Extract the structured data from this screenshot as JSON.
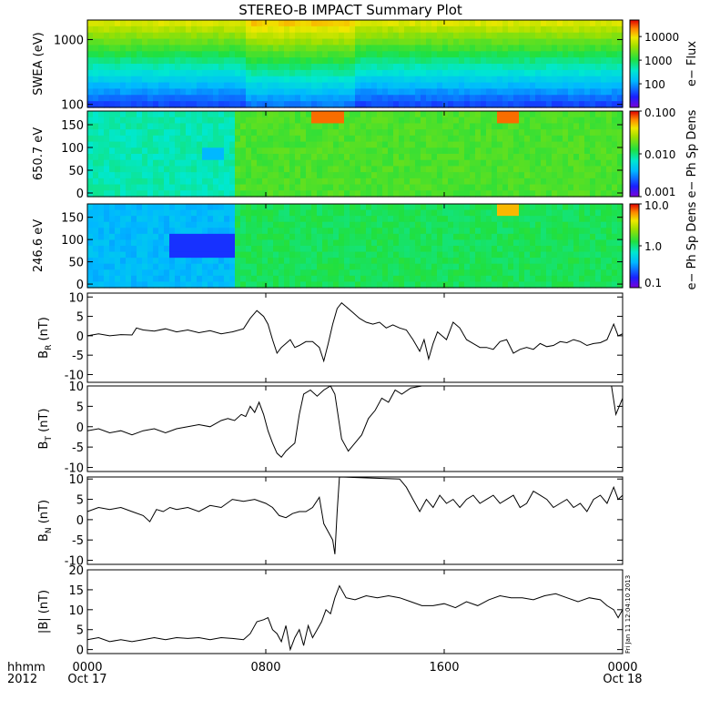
{
  "chart_data": {
    "title": "STEREO-B IMPACT Summary Plot",
    "x_axis": {
      "ticks": [
        {
          "hour": 0,
          "time": "0000",
          "date": "Oct 17"
        },
        {
          "hour": 8,
          "time": "0800",
          "date": ""
        },
        {
          "hour": 16,
          "time": "1600",
          "date": ""
        },
        {
          "hour": 24,
          "time": "0000",
          "date": "Oct 18"
        }
      ],
      "row_label_time": "hhmm",
      "row_label_year": "2012",
      "range": [
        0,
        24
      ]
    },
    "stamp": "Fri Jan 11 12:04:10 2013",
    "spectrograms": [
      {
        "name": "swea",
        "ylabel": "SWEA (eV)",
        "yscale": "log",
        "ylim": [
          90,
          2000
        ],
        "yticks": [
          {
            "value": 100,
            "label": "100"
          },
          {
            "value": 1000,
            "label": "1000"
          }
        ],
        "cbar_label": "e− Flux",
        "cbar_scale": "log",
        "cbar_range": [
          10,
          50000
        ],
        "cbar_ticks": [
          {
            "value": 100,
            "label": "100"
          },
          {
            "value": 1000,
            "label": "1000"
          },
          {
            "value": 10000,
            "label": "10000"
          }
        ]
      },
      {
        "name": "pad650",
        "ylabel": "650.7 eV",
        "yscale": "linear",
        "ylim": [
          -8,
          180
        ],
        "yticks": [
          {
            "value": 0,
            "label": "0"
          },
          {
            "value": 50,
            "label": "50"
          },
          {
            "value": 100,
            "label": "100"
          },
          {
            "value": 150,
            "label": "150"
          }
        ],
        "cbar_label": "e− Ph Sp Dens",
        "cbar_scale": "log",
        "cbar_range": [
          0.001,
          0.1
        ],
        "cbar_ticks": [
          {
            "value": 0.001,
            "label": "0.001"
          },
          {
            "value": 0.01,
            "label": "0.010"
          },
          {
            "value": 0.1,
            "label": "0.100"
          }
        ]
      },
      {
        "name": "pad246",
        "ylabel": "246.6 eV",
        "yscale": "linear",
        "ylim": [
          -8,
          180
        ],
        "yticks": [
          {
            "value": 0,
            "label": "0"
          },
          {
            "value": 50,
            "label": "50"
          },
          {
            "value": 100,
            "label": "100"
          },
          {
            "value": 150,
            "label": "150"
          }
        ],
        "cbar_label": "e− Ph Sp Dens",
        "cbar_scale": "log",
        "cbar_range": [
          0.1,
          10
        ],
        "cbar_ticks": [
          {
            "value": 0.1,
            "label": "0.1"
          },
          {
            "value": 1,
            "label": "1.0"
          },
          {
            "value": 10,
            "label": "10.0"
          }
        ]
      }
    ],
    "line_panels": [
      {
        "name": "br",
        "ylabel_main": "B",
        "ylabel_sub": "R",
        "ylabel_unit": "(nT)",
        "ylim": [
          -12,
          11
        ],
        "yticks": [
          -10,
          -5,
          0,
          5,
          10
        ],
        "x": [
          0,
          0.5,
          1,
          1.5,
          2,
          2.2,
          2.5,
          3,
          3.5,
          4,
          4.5,
          5,
          5.5,
          6,
          6.5,
          7,
          7.3,
          7.6,
          7.9,
          8.1,
          8.3,
          8.5,
          8.7,
          8.9,
          9.1,
          9.3,
          9.5,
          9.8,
          10.1,
          10.4,
          10.6,
          10.8,
          11.0,
          11.2,
          11.4,
          11.6,
          11.9,
          12.2,
          12.5,
          12.8,
          13.1,
          13.4,
          13.7,
          14,
          14.3,
          14.6,
          14.9,
          15.1,
          15.3,
          15.5,
          15.7,
          15.9,
          16.1,
          16.4,
          16.7,
          17,
          17.3,
          17.6,
          17.9,
          18.2,
          18.5,
          18.8,
          19.1,
          19.4,
          19.7,
          20,
          20.3,
          20.6,
          20.9,
          21.2,
          21.5,
          21.8,
          22.1,
          22.4,
          22.7,
          23,
          23.3,
          23.6,
          23.8,
          24
        ],
        "y": [
          0,
          0.5,
          0,
          0.3,
          0.2,
          2,
          1.5,
          1.2,
          1.8,
          1,
          1.5,
          0.8,
          1.3,
          0.5,
          1,
          1.8,
          4.5,
          6.5,
          5,
          3,
          -1,
          -4.5,
          -3,
          -2,
          -1,
          -3,
          -2.5,
          -1.5,
          -1.5,
          -3,
          -6.5,
          -2,
          3,
          7,
          8.5,
          7.5,
          6,
          4.5,
          3.5,
          3,
          3.5,
          2,
          2.8,
          2,
          1.5,
          -1,
          -4,
          -1,
          -6,
          -2,
          1,
          0,
          -1,
          3.5,
          2,
          -1,
          -2,
          -3,
          -3,
          -3.5,
          -1.5,
          -1,
          -4.5,
          -3.5,
          -3,
          -3.5,
          -2,
          -2.8,
          -2.5,
          -1.5,
          -1.8,
          -1,
          -1.5,
          -2.5,
          -2,
          -1.8,
          -1,
          3,
          0,
          0.5
        ]
      },
      {
        "name": "bt",
        "ylabel_main": "B",
        "ylabel_sub": "T",
        "ylabel_unit": "(nT)",
        "ylim": [
          -11,
          10
        ],
        "yticks": [
          -10,
          -5,
          0,
          5,
          10
        ],
        "x": [
          0,
          0.5,
          1,
          1.5,
          2,
          2.5,
          3,
          3.5,
          4,
          4.5,
          5,
          5.5,
          6,
          6.3,
          6.6,
          6.9,
          7.1,
          7.3,
          7.5,
          7.7,
          7.9,
          8.1,
          8.3,
          8.5,
          8.7,
          8.9,
          9.1,
          9.3,
          9.5,
          9.7,
          10.0,
          10.3,
          10.6,
          10.9,
          11.1,
          11.4,
          11.7,
          12,
          12.3,
          12.6,
          12.9,
          13.2,
          13.5,
          13.8,
          14.1,
          14.5,
          15,
          15.5,
          16,
          16.5,
          17,
          17.5,
          18,
          19,
          20,
          21,
          22,
          23,
          23.5,
          23.7,
          24
        ],
        "y": [
          -1,
          -0.5,
          -1.5,
          -1,
          -2,
          -1,
          -0.5,
          -1.5,
          -0.5,
          0,
          0.5,
          0,
          1.5,
          2,
          1.5,
          3,
          2.5,
          5,
          3.5,
          6,
          3,
          -1,
          -4,
          -6.5,
          -7.5,
          -6,
          -5,
          -4,
          3,
          8,
          9,
          7.5,
          9,
          10,
          8,
          -3,
          -6,
          -4,
          -2,
          2,
          4,
          7,
          6,
          9,
          8,
          9.5,
          10,
          10,
          10,
          10,
          10,
          10,
          10,
          10,
          10,
          10,
          10,
          10,
          10,
          3,
          7
        ]
      },
      {
        "name": "bn",
        "ylabel_main": "B",
        "ylabel_sub": "N",
        "ylabel_unit": "(nT)",
        "ylim": [
          -11,
          10.5
        ],
        "yticks": [
          -10,
          -5,
          0,
          5,
          10
        ],
        "x": [
          0,
          0.5,
          1,
          1.5,
          2,
          2.5,
          2.8,
          3.1,
          3.4,
          3.7,
          4,
          4.5,
          5,
          5.5,
          6,
          6.5,
          7,
          7.5,
          8,
          8.3,
          8.6,
          8.9,
          9.2,
          9.5,
          9.8,
          10.1,
          10.4,
          10.6,
          10.8,
          11.0,
          11.1,
          11.2,
          11.3,
          14.0,
          14.3,
          14.6,
          14.9,
          15.2,
          15.5,
          15.8,
          16.1,
          16.4,
          16.7,
          17,
          17.3,
          17.6,
          17.9,
          18.2,
          18.5,
          18.8,
          19.1,
          19.4,
          19.7,
          20,
          20.3,
          20.6,
          20.9,
          21.2,
          21.5,
          21.8,
          22.1,
          22.4,
          22.7,
          23,
          23.3,
          23.6,
          23.8,
          24
        ],
        "y": [
          2,
          3,
          2.5,
          3,
          2,
          1,
          -0.5,
          2.5,
          2,
          3,
          2.5,
          3,
          2,
          3.5,
          3,
          5,
          4.5,
          5,
          4,
          3,
          1,
          0.5,
          1.5,
          2,
          2,
          3,
          5.5,
          -1,
          -3,
          -5,
          -8.5,
          2,
          10.5,
          10,
          8,
          5,
          2,
          5,
          3,
          6,
          4,
          5,
          3,
          5,
          6,
          4,
          5,
          6,
          4,
          5,
          6,
          3,
          4,
          7,
          6,
          5,
          3,
          4,
          5,
          3,
          4,
          2,
          5,
          6,
          4,
          8,
          5,
          6
        ]
      },
      {
        "name": "bmag",
        "ylabel_main": "|B| (nT)",
        "ylabel_sub": "",
        "ylabel_unit": "",
        "ylim": [
          -1,
          20
        ],
        "yticks": [
          0,
          5,
          10,
          15,
          20
        ],
        "x": [
          0,
          0.5,
          1,
          1.5,
          2,
          2.5,
          3,
          3.5,
          4,
          4.5,
          5,
          5.5,
          6,
          6.5,
          7,
          7.3,
          7.6,
          7.9,
          8.1,
          8.3,
          8.5,
          8.7,
          8.9,
          9.1,
          9.3,
          9.5,
          9.7,
          9.9,
          10.1,
          10.3,
          10.5,
          10.7,
          10.9,
          11.1,
          11.3,
          11.6,
          12,
          12.5,
          13,
          13.5,
          14,
          14.5,
          15,
          15.5,
          16,
          16.5,
          17,
          17.5,
          18,
          18.5,
          19,
          19.5,
          20,
          20.5,
          21,
          21.5,
          22,
          22.5,
          23,
          23.3,
          23.6,
          23.8,
          24
        ],
        "y": [
          2.5,
          3,
          2,
          2.5,
          2,
          2.5,
          3,
          2.5,
          3,
          2.8,
          3,
          2.5,
          3,
          2.8,
          2.5,
          4,
          7,
          7.5,
          8,
          5,
          4,
          2,
          6,
          0,
          3,
          5,
          1,
          6,
          3,
          5,
          7,
          10,
          9,
          13,
          16,
          13,
          12.5,
          13.5,
          13,
          13.5,
          13,
          12,
          11,
          11,
          11.5,
          10.5,
          12,
          11,
          12.5,
          13.5,
          13,
          13,
          12.5,
          13.5,
          14,
          13,
          12,
          13,
          12.5,
          11,
          10,
          8,
          10
        ]
      }
    ]
  }
}
